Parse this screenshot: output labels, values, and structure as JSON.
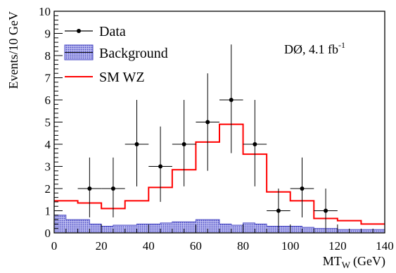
{
  "chart_data": {
    "type": "bar",
    "xlabel": "MT",
    "xlabel_sub": "W",
    "xlabel_unit": "(GeV)",
    "ylabel": "Events/10 GeV",
    "xlim": [
      0,
      140
    ],
    "ylim": [
      0,
      10
    ],
    "x_ticks": [
      "0",
      "20",
      "40",
      "60",
      "80",
      "100",
      "120",
      "140"
    ],
    "y_ticks": [
      "0",
      "1",
      "2",
      "3",
      "4",
      "5",
      "6",
      "7",
      "8",
      "9",
      "10"
    ],
    "bin_edges": [
      0,
      5,
      10,
      15,
      20,
      25,
      30,
      35,
      40,
      45,
      50,
      55,
      60,
      65,
      70,
      75,
      80,
      85,
      90,
      95,
      100,
      105,
      110,
      115,
      120,
      125,
      130,
      135,
      140
    ],
    "legend": {
      "position": "top-left",
      "entries": [
        "Data",
        "Background",
        "SM WZ"
      ]
    },
    "annotation": {
      "experiment": "DØ, 4.1 fb",
      "superscript": "-1"
    },
    "series": [
      {
        "name": "Background",
        "style": "filled-histogram",
        "color": "#7b7bd8",
        "values": [
          0.8,
          0.6,
          0.6,
          0.4,
          0.3,
          0.35,
          0.35,
          0.4,
          0.4,
          0.45,
          0.5,
          0.5,
          0.6,
          0.6,
          0.4,
          0.35,
          0.45,
          0.4,
          0.3,
          0.3,
          0.3,
          0.25,
          0.2,
          0.2,
          0.15,
          0.15,
          0.15,
          0.15
        ]
      },
      {
        "name": "SM WZ",
        "style": "step-line",
        "color": "#ff0000",
        "values": [
          1.45,
          1.45,
          1.35,
          1.35,
          1.1,
          1.1,
          1.45,
          1.45,
          2.05,
          2.05,
          2.85,
          2.85,
          4.1,
          4.1,
          4.9,
          4.9,
          3.55,
          3.55,
          1.85,
          1.85,
          1.45,
          1.45,
          0.65,
          0.65,
          0.55,
          0.55,
          0.4,
          0.4
        ]
      },
      {
        "name": "Data",
        "style": "points-with-errors",
        "color": "#000000",
        "x": [
          15,
          25,
          35,
          45,
          55,
          65,
          75,
          85,
          95,
          105,
          115
        ],
        "y": [
          2,
          2,
          4,
          3,
          4,
          5,
          6,
          4,
          1,
          2,
          1
        ],
        "yerr_low": [
          1.3,
          1.3,
          1.9,
          1.6,
          1.9,
          2.2,
          2.4,
          1.9,
          0.8,
          1.3,
          0.8
        ],
        "yerr_high": [
          1.4,
          1.4,
          2.0,
          1.8,
          2.0,
          2.2,
          2.5,
          2.0,
          1.0,
          1.4,
          1.0
        ],
        "xerr": 5
      }
    ]
  }
}
